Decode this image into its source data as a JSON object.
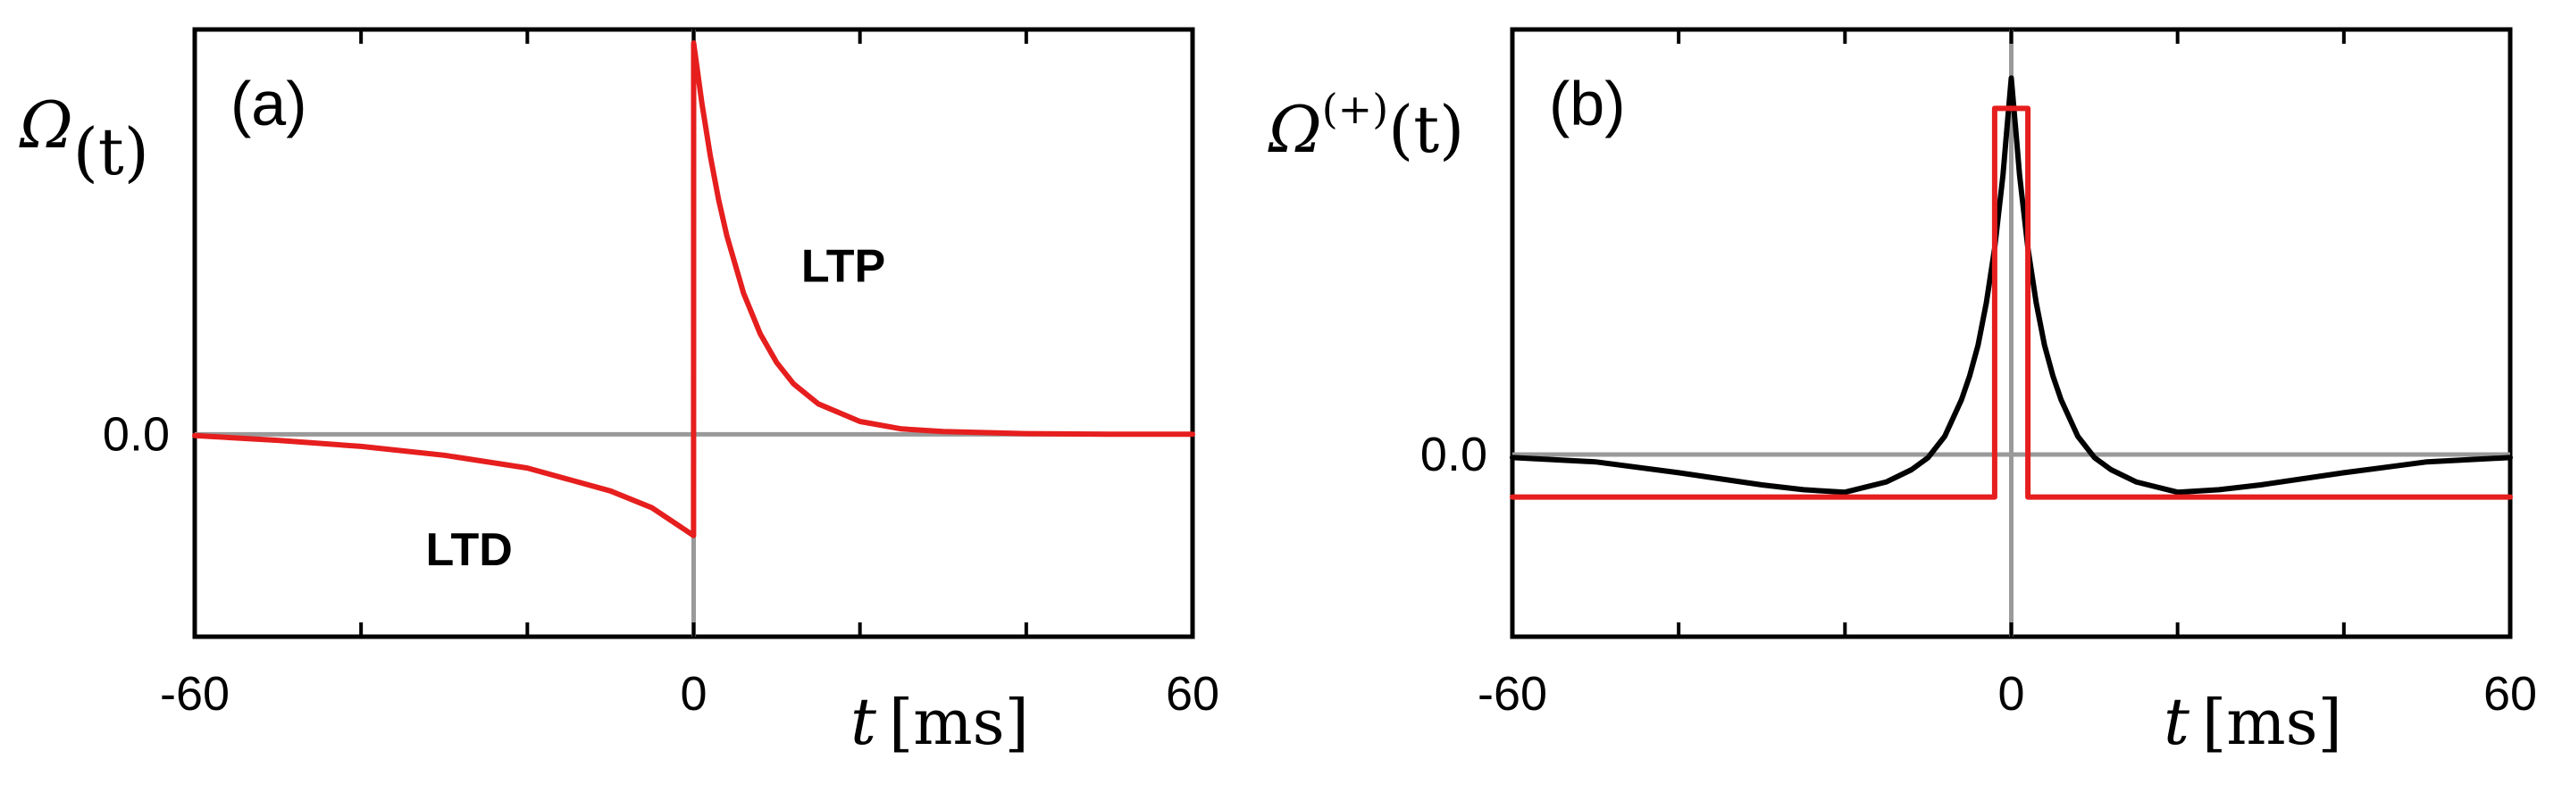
{
  "chart_data": [
    {
      "type": "line",
      "panel_label": "(a)",
      "ylabel": "Ω(t)",
      "ylabel_parts": {
        "main": "Ω",
        "sup": "",
        "arg": "(t)"
      },
      "xlabel": "t [ms]",
      "xlabel_parts": {
        "var": "t",
        "unit": "[ms]"
      },
      "xlim": [
        -60,
        60
      ],
      "ylim": [
        -0.3,
        0.6
      ],
      "xtick_labels": [
        "-60",
        "0",
        "60"
      ],
      "xtick_values": [
        -60,
        0,
        60
      ],
      "xtick_minor": [
        -40,
        -20,
        20,
        40
      ],
      "ytick_labels": [
        "0.0"
      ],
      "ytick_values": [
        0
      ],
      "reference_lines": {
        "horizontal": 0,
        "vertical": 0,
        "color": "#999999"
      },
      "annotations": [
        {
          "text": "LTP",
          "x": 18,
          "y": 0.25
        },
        {
          "text": "LTD",
          "x": -27,
          "y": -0.17
        }
      ],
      "series": [
        {
          "color": "#e61e1e",
          "kind": "piecewise",
          "x": [
            -60,
            -50,
            -40,
            -30,
            -20,
            -10,
            -5,
            -0.01,
            0,
            1,
            2,
            3,
            4,
            6,
            8,
            10,
            12,
            15,
            20,
            25,
            30,
            40,
            50,
            60
          ],
          "y": [
            -0.002,
            -0.009,
            -0.018,
            -0.031,
            -0.05,
            -0.084,
            -0.109,
            -0.15,
            0.58,
            0.49,
            0.413,
            0.348,
            0.294,
            0.209,
            0.149,
            0.106,
            0.075,
            0.045,
            0.019,
            0.008,
            0.004,
            0.001,
            0.0,
            0.0
          ]
        }
      ]
    },
    {
      "type": "line",
      "panel_label": "(b)",
      "ylabel": "Ω(+)(t)",
      "ylabel_parts": {
        "main": "Ω",
        "sup": "(+)",
        "arg": "(t)"
      },
      "xlabel": "t [ms]",
      "xlabel_parts": {
        "var": "t",
        "unit": "[ms]"
      },
      "xlim": [
        -60,
        60
      ],
      "ylim": [
        -0.3,
        0.7
      ],
      "xtick_labels": [
        "-60",
        "0",
        "60"
      ],
      "xtick_values": [
        -60,
        0,
        60
      ],
      "xtick_minor": [
        -40,
        -20,
        20,
        40
      ],
      "ytick_labels": [
        "0.0"
      ],
      "ytick_values": [
        0
      ],
      "reference_lines": {
        "horizontal": 0,
        "vertical": 0,
        "color": "#999999"
      },
      "series": [
        {
          "color": "#000000",
          "kind": "curve",
          "x": [
            -60,
            -50,
            -40,
            -30,
            -25,
            -20,
            -15,
            -12,
            -10,
            -8,
            -6,
            -5,
            -4,
            -3,
            -2,
            -1,
            -0.5,
            0,
            0.5,
            1,
            2,
            3,
            4,
            5,
            6,
            8,
            10,
            12,
            15,
            20,
            25,
            30,
            40,
            50,
            60
          ],
          "y": [
            -0.005,
            -0.012,
            -0.03,
            -0.05,
            -0.058,
            -0.062,
            -0.045,
            -0.025,
            -0.005,
            0.03,
            0.09,
            0.13,
            0.18,
            0.25,
            0.34,
            0.46,
            0.54,
            0.62,
            0.54,
            0.46,
            0.34,
            0.25,
            0.18,
            0.13,
            0.09,
            0.03,
            -0.005,
            -0.025,
            -0.045,
            -0.062,
            -0.058,
            -0.05,
            -0.03,
            -0.012,
            -0.005
          ]
        },
        {
          "color": "#e61e1e",
          "kind": "step",
          "x": [
            -60,
            -2,
            -2,
            2,
            2,
            60
          ],
          "y": [
            -0.07,
            -0.07,
            0.57,
            0.57,
            -0.07,
            -0.07
          ]
        }
      ]
    }
  ]
}
